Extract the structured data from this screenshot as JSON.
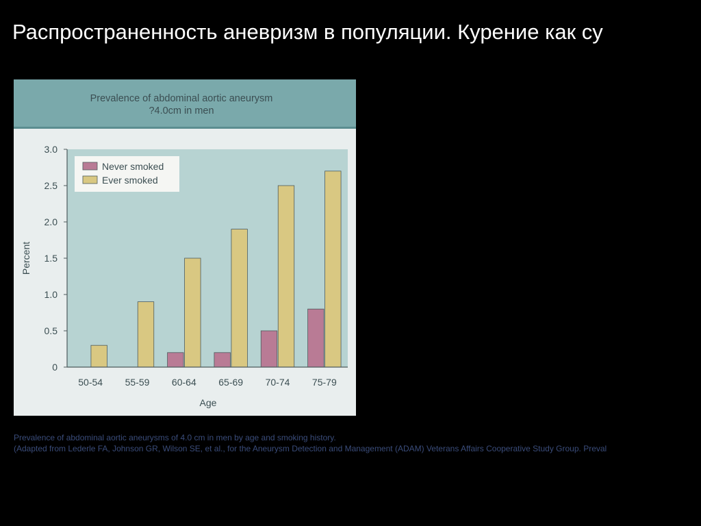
{
  "slide": {
    "title": "Распространенность аневризм в популяции. Курение как су",
    "caption_line1": "Prevalence of abdominal aortic aneurysms of 4.0 cm in men by age and smoking history.",
    "caption_line2": "(Adapted from Lederle FA, Johnson GR, Wilson SE, et al., for the Aneurysm Detection and Management (ADAM) Veterans Affairs Cooperative Study Group. Preval"
  },
  "colors": {
    "background": "#000000",
    "header": "#7aa9ab",
    "plot_area": "#b7d3d2",
    "never_smoked": "#b97b95",
    "ever_smoked": "#d9c882"
  },
  "chart_data": {
    "type": "bar",
    "title": "Prevalence of abdominal aortic aneurysm",
    "subtitle": "?4.0cm in men",
    "xlabel": "Age",
    "ylabel": "Percent",
    "ylim": [
      0,
      3.0
    ],
    "yticks": [
      "0",
      "0.5",
      "1.0",
      "1.5",
      "2.0",
      "2.5",
      "3.0"
    ],
    "categories": [
      "50-54",
      "55-59",
      "60-64",
      "65-69",
      "70-74",
      "75-79"
    ],
    "series": [
      {
        "name": "Never smoked",
        "values": [
          0,
          0,
          0.2,
          0.2,
          0.5,
          0.8
        ]
      },
      {
        "name": "Ever smoked",
        "values": [
          0.3,
          0.9,
          1.5,
          1.9,
          2.5,
          2.7
        ]
      }
    ],
    "legend": "top-left",
    "grid": false
  }
}
